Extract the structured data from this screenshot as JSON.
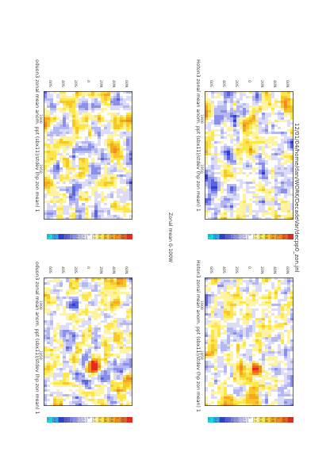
{
  "header": {
    "path": "12/01/04/home/dan/WORK/DecadeVar/decpp0_zon.jnl"
  },
  "zonal_mean_label": "Zonal mean 0-100W",
  "colors": {
    "-2": "#18d8e8",
    "-1.5": "#2aa8f0",
    "-1": "#2f3fd0",
    "-0.8": "#5a64e0",
    "-0.6": "#8a90ea",
    "-0.4": "#b4b8f2",
    "-0.2": "#dcdcf8",
    "0": "#ffffff",
    "0.2": "#fdf3a0",
    "0.4": "#fde64a",
    "0.6": "#f8c828",
    "0.8": "#f6a824",
    "1": "#f28a22",
    "1.5": "#ee6020",
    "2": "#e82a1c"
  },
  "chart_data": [
    {
      "type": "heatmap",
      "title": "Hoton3 zonal mean anom. ppt (sbx11)/stdev (hp zon mean) 1",
      "x_ticks": [
        "1900",
        "1950"
      ],
      "y_ticks": [
        "60N",
        "40N",
        "20N",
        "0",
        "20S",
        "40S",
        "60S"
      ],
      "colorbar": {
        "levels": [
          "2",
          "1.5",
          "1",
          "0.8",
          "0.6",
          "0.4",
          "0.2",
          "0",
          "-0.2",
          "-0.4",
          "-0.6",
          "-0.8",
          "-1",
          "-1.5",
          "-2"
        ]
      },
      "hotspot": null
    },
    {
      "type": "heatmap",
      "title": "Hoton3 zonal mean anom. ppt (sbx11)/stdev (hp zon mean) 1",
      "x_ticks": [
        "1900",
        "1950"
      ],
      "y_ticks": [
        "60N",
        "40N",
        "20N",
        "0",
        "20S",
        "40S",
        "60S"
      ],
      "colorbar": {
        "levels": [
          "2",
          "1.5",
          "1",
          "0.8",
          "0.6",
          "0.4",
          "0.2",
          "0",
          "-0.2",
          "-0.4",
          "-0.6",
          "-0.8",
          "-1",
          "-1.5",
          "-2"
        ]
      },
      "hotspot": {
        "year": 1962,
        "lat": 10
      }
    },
    {
      "type": "heatmap",
      "title": "oduon3 zonal mean anom. ppt (sbx11)/stdev (hp zon mean) 1",
      "x_ticks": [
        "1900",
        "1950"
      ],
      "y_ticks": [
        "60N",
        "40N",
        "20N",
        "0",
        "20S",
        "40S",
        "60S"
      ],
      "colorbar": {
        "levels": [
          "2",
          "1.5",
          "1",
          "0.8",
          "0.6",
          "0.4",
          "0.2",
          "0",
          "-0.2",
          "-0.4",
          "-0.6",
          "-0.8",
          "-1",
          "-1.5",
          "-2"
        ]
      },
      "hotspot": null
    },
    {
      "type": "heatmap",
      "title": "oduon3 zonal mean anom. ppt (sbx11)/stdev (hp zon mean) 1",
      "x_ticks": [
        "1900",
        "1950"
      ],
      "y_ticks": [
        "60N",
        "40N",
        "20N",
        "0",
        "20S",
        "40S",
        "60S"
      ],
      "colorbar": {
        "levels": [
          "2",
          "1.5",
          "1",
          "0.8",
          "0.6",
          "0.4",
          "0.2",
          "0",
          "-0.2",
          "-0.4",
          "-0.6",
          "-0.8",
          "-1",
          "-1.5",
          "-2"
        ]
      },
      "hotspot": {
        "year": 1960,
        "lat": 10
      }
    }
  ]
}
